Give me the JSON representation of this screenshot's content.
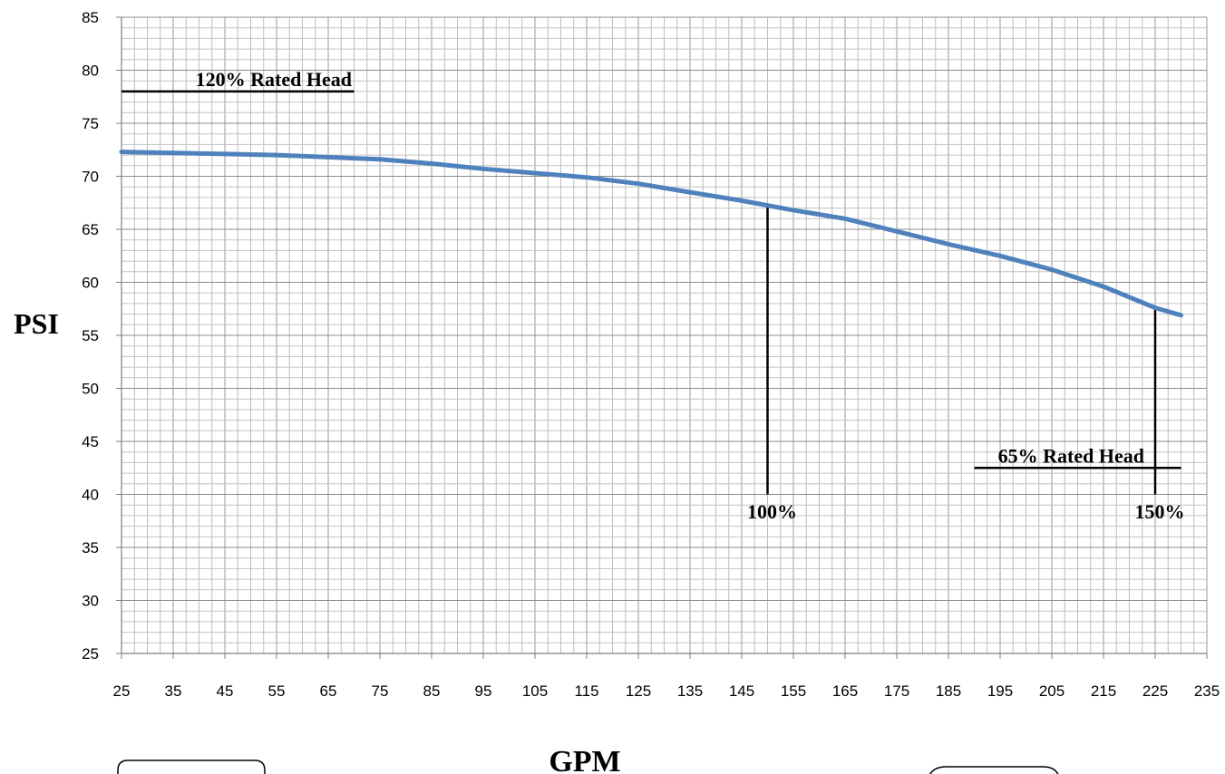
{
  "chart_data": {
    "type": "line",
    "xlabel": "GPM",
    "ylabel": "PSI",
    "xlim": [
      25,
      235
    ],
    "ylim": [
      25,
      85
    ],
    "x_ticks": [
      25,
      35,
      45,
      55,
      65,
      75,
      85,
      95,
      105,
      115,
      125,
      135,
      145,
      155,
      165,
      175,
      185,
      195,
      205,
      215,
      225,
      235
    ],
    "y_ticks": [
      25,
      30,
      35,
      40,
      45,
      50,
      55,
      60,
      65,
      70,
      75,
      80,
      85
    ],
    "grid": true,
    "series": [
      {
        "color": "#4f81bd",
        "points": [
          [
            25,
            72.3
          ],
          [
            35,
            72.2
          ],
          [
            45,
            72.1
          ],
          [
            55,
            72.0
          ],
          [
            65,
            71.8
          ],
          [
            75,
            71.6
          ],
          [
            85,
            71.2
          ],
          [
            95,
            70.7
          ],
          [
            105,
            70.3
          ],
          [
            115,
            69.9
          ],
          [
            125,
            69.3
          ],
          [
            135,
            68.5
          ],
          [
            145,
            67.7
          ],
          [
            155,
            66.8
          ],
          [
            165,
            66.0
          ],
          [
            175,
            64.8
          ],
          [
            185,
            63.6
          ],
          [
            195,
            62.5
          ],
          [
            205,
            61.2
          ],
          [
            215,
            59.6
          ],
          [
            225,
            57.6
          ],
          [
            230,
            56.9
          ]
        ]
      }
    ],
    "annotations": {
      "hlines": [
        {
          "label": "120% Rated Head",
          "y": 78,
          "x_from": 25,
          "x_to": 70
        },
        {
          "label": "65% Rated Head",
          "y": 42.5,
          "x_from": 190,
          "x_to": 230
        }
      ],
      "vlines": [
        {
          "label": "100%",
          "x": 150,
          "y_from": 40,
          "y_to": 67.2
        },
        {
          "label": "150%",
          "x": 225,
          "y_from": 40,
          "y_to": 57.6
        }
      ]
    }
  }
}
